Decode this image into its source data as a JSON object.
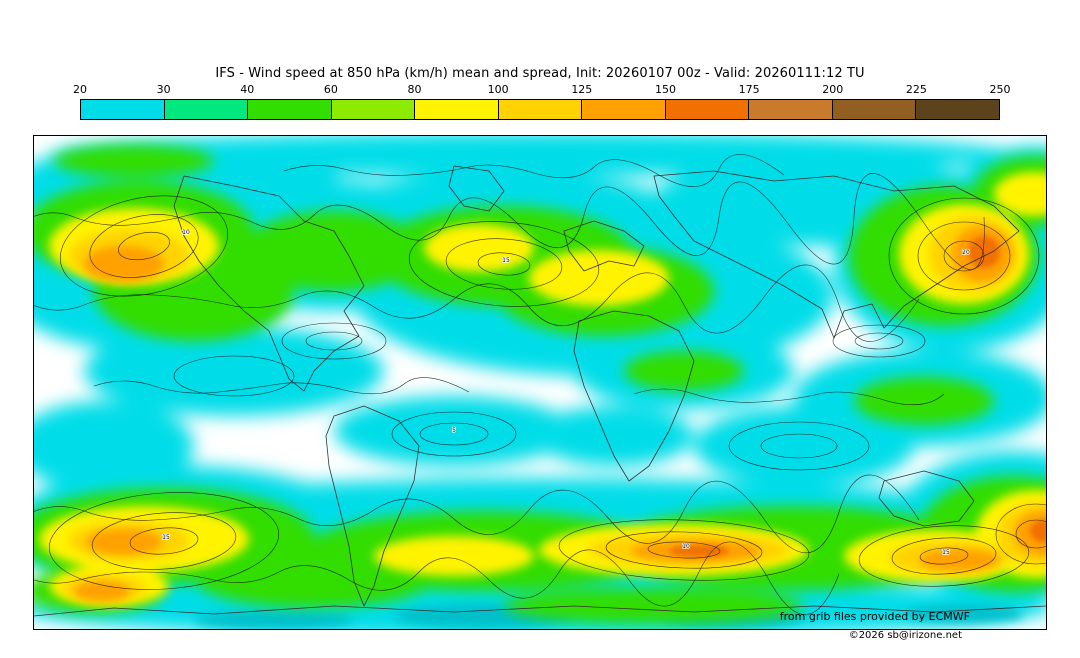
{
  "title": "IFS - Wind speed at 850 hPa (km/h) mean and spread, Init: 20260107 00z - Valid: 20260111:12 TU",
  "attribution": {
    "source": "from grib files provided by ECMWF",
    "copyright": "©2026 sb@irizone.net"
  },
  "chart_data": {
    "type": "heatmap",
    "title": "IFS - Wind speed at 850 hPa (km/h) mean and spread",
    "init": "20260107 00z",
    "valid": "20260111:12 TU",
    "units": "km/h",
    "colorbar": {
      "levels": [
        20,
        30,
        40,
        60,
        80,
        100,
        125,
        150,
        175,
        200,
        225,
        250
      ],
      "colors": [
        "#00dde8",
        "#00e87e",
        "#33dd00",
        "#8ceb00",
        "#fff300",
        "#ffd200",
        "#ffa100",
        "#f07000",
        "#c97a2d",
        "#925f22",
        "#5c431c"
      ]
    },
    "contour_labels": [
      "5",
      "10",
      "15",
      "20"
    ],
    "projection": "global equirectangular map, Atlantic-centered",
    "legend_position": "top horizontal colorbar",
    "notes": "Filled contours of mean wind speed (shading starts at 20 km/h, white below); thin black contour lines show ensemble spread with inline labels 5-20"
  }
}
